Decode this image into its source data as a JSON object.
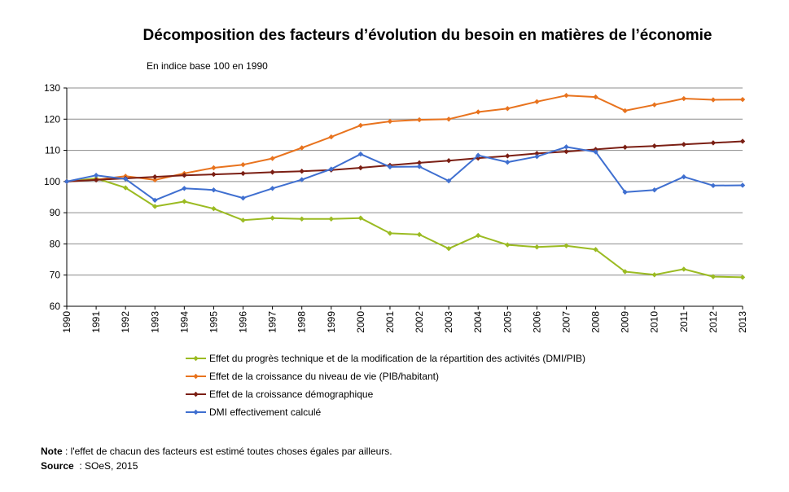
{
  "chart_data": {
    "type": "line",
    "title": "Décomposition des facteurs d’évolution du besoin en matières de l’économie",
    "subtitle": "En indice base 100 en 1990",
    "xlabel": "",
    "ylabel": "",
    "ylim": [
      60,
      130
    ],
    "yticks": [
      60,
      70,
      80,
      90,
      100,
      110,
      120,
      130
    ],
    "grid": true,
    "legend_position": "bottom",
    "categories": [
      "1990",
      "1991",
      "1992",
      "1993",
      "1994",
      "1995",
      "1996",
      "1997",
      "1998",
      "1999",
      "2000",
      "2001",
      "2002",
      "2003",
      "2004",
      "2005",
      "2006",
      "2007",
      "2008",
      "2009",
      "2010",
      "2011",
      "2012",
      "2013"
    ],
    "series": [
      {
        "name": "Effet du progrès technique et de la modification de la répartition des activités (DMI/PIB)",
        "color": "#9BBB22",
        "values": [
          100,
          101,
          98,
          92,
          93.6,
          91.3,
          87.6,
          88.3,
          88,
          88,
          88.3,
          83.4,
          83,
          78.5,
          82.7,
          79.7,
          79,
          79.4,
          78.2,
          71.1,
          70.1,
          71.9,
          69.5,
          69.3
        ]
      },
      {
        "name": "Effet de la croissance du niveau de vie (PIB/habitant)",
        "color": "#E8731E",
        "values": [
          100,
          100.6,
          101.7,
          100.5,
          102.6,
          104.4,
          105.4,
          107.4,
          110.8,
          114.3,
          118,
          119.3,
          119.8,
          120,
          122.3,
          123.4,
          125.6,
          127.6,
          127.1,
          122.7,
          124.6,
          126.6,
          126.2,
          126.3
        ]
      },
      {
        "name": "Effet de la croissance démographique",
        "color": "#7B1F14",
        "values": [
          100,
          100.5,
          101,
          101.5,
          102,
          102.3,
          102.6,
          103,
          103.3,
          103.7,
          104.4,
          105.2,
          106,
          106.7,
          107.5,
          108.2,
          109,
          109.6,
          110.3,
          111,
          111.4,
          111.9,
          112.4,
          112.9
        ]
      },
      {
        "name": "DMI effectivement calculé",
        "color": "#3F6FD0",
        "values": [
          100,
          102,
          100.8,
          94,
          97.8,
          97.3,
          94.7,
          97.8,
          100.6,
          104,
          108.8,
          104.7,
          104.8,
          100.2,
          108.4,
          106.2,
          108,
          111.1,
          109.5,
          96.6,
          97.3,
          101.5,
          98.7,
          98.8
        ]
      }
    ]
  },
  "notes": {
    "note_label": "Note",
    "note_text": " : l'effet de chacun des facteurs est estimé toutes choses égales par ailleurs.",
    "source_label": "Source",
    "source_text": "  : SOeS, 2015"
  }
}
